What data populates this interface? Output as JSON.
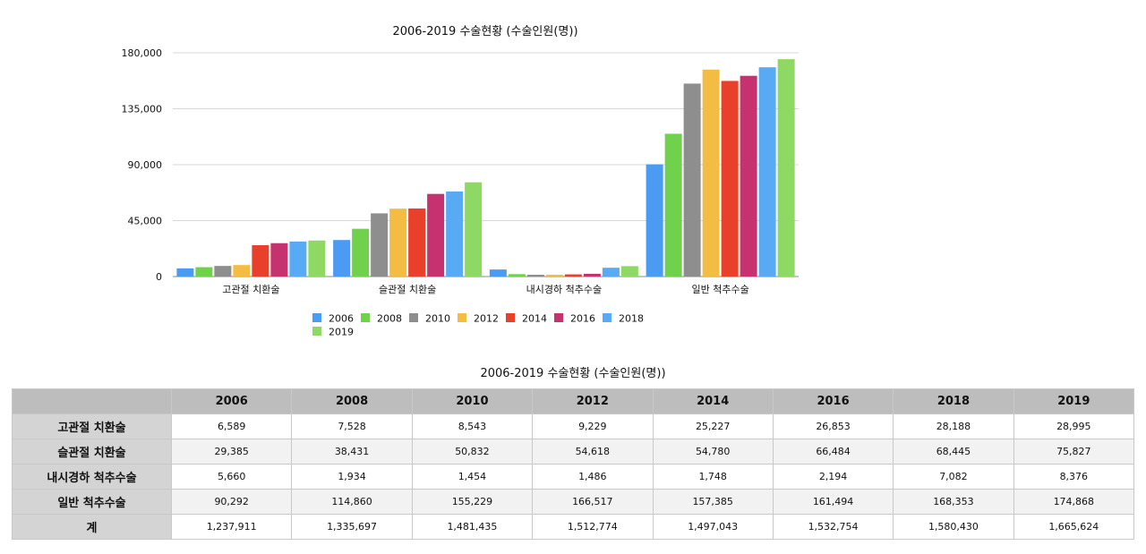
{
  "chart_data": {
    "type": "bar",
    "title": "2006-2019 수술현황 (수술인원(명))",
    "categories": [
      "고관절 치환술",
      "슬관절 치환술",
      "내시경하 척추수술",
      "일반 척추수술"
    ],
    "ylim": [
      0,
      180000
    ],
    "yticks": [
      0,
      45000,
      90000,
      135000,
      180000
    ],
    "ytick_labels": [
      "0",
      "45,000",
      "90,000",
      "135,000",
      "180,000"
    ],
    "legend_position": "bottom",
    "series": [
      {
        "name": "2006",
        "color": "#4b9bf2",
        "values": [
          6589,
          29385,
          5660,
          90292
        ]
      },
      {
        "name": "2008",
        "color": "#70d14c",
        "values": [
          7528,
          38431,
          1934,
          114860
        ]
      },
      {
        "name": "2010",
        "color": "#8e8e8e",
        "values": [
          8543,
          50832,
          1454,
          155229
        ]
      },
      {
        "name": "2012",
        "color": "#f2bd42",
        "values": [
          9229,
          54618,
          1486,
          166517
        ]
      },
      {
        "name": "2014",
        "color": "#e9402b",
        "values": [
          25227,
          54780,
          1748,
          157385
        ]
      },
      {
        "name": "2016",
        "color": "#c5326f",
        "values": [
          26853,
          66484,
          2194,
          161494
        ]
      },
      {
        "name": "2018",
        "color": "#58aaf5",
        "values": [
          28188,
          68445,
          7082,
          168353
        ]
      },
      {
        "name": "2019",
        "color": "#8ed963",
        "values": [
          28995,
          75827,
          8376,
          174868
        ]
      }
    ]
  },
  "table": {
    "title": "2006-2019 수술현황 (수술인원(명))",
    "headers": [
      "",
      "2006",
      "2008",
      "2010",
      "2012",
      "2014",
      "2016",
      "2018",
      "2019"
    ],
    "rows": [
      {
        "label": "고관절 치환술",
        "cells": [
          "6,589",
          "7,528",
          "8,543",
          "9,229",
          "25,227",
          "26,853",
          "28,188",
          "28,995"
        ]
      },
      {
        "label": "슬관절 치환술",
        "cells": [
          "29,385",
          "38,431",
          "50,832",
          "54,618",
          "54,780",
          "66,484",
          "68,445",
          "75,827"
        ]
      },
      {
        "label": "내시경하 척추수술",
        "cells": [
          "5,660",
          "1,934",
          "1,454",
          "1,486",
          "1,748",
          "2,194",
          "7,082",
          "8,376"
        ]
      },
      {
        "label": "일반 척추수술",
        "cells": [
          "90,292",
          "114,860",
          "155,229",
          "166,517",
          "157,385",
          "161,494",
          "168,353",
          "174,868"
        ]
      },
      {
        "label": "계",
        "cells": [
          "1,237,911",
          "1,335,697",
          "1,481,435",
          "1,512,774",
          "1,497,043",
          "1,532,754",
          "1,580,430",
          "1,665,624"
        ]
      }
    ]
  }
}
